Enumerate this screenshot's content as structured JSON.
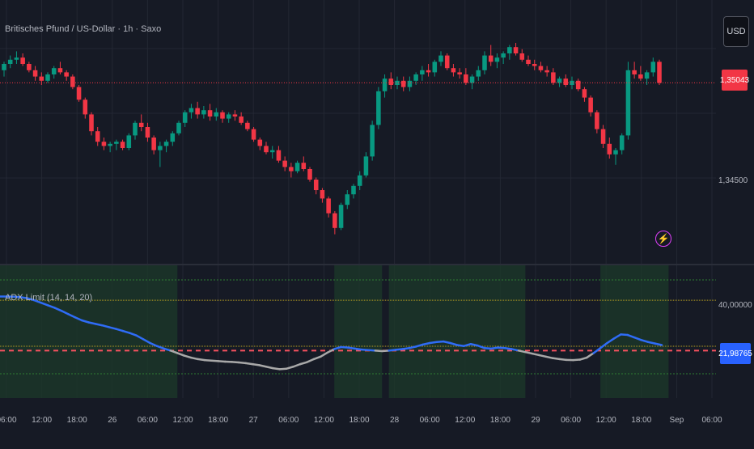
{
  "header": {
    "title": "Britisches Pfund / US-Dollar · 1h · Saxo",
    "currency": "USD"
  },
  "price_axis": {
    "current_price_label": "1,35043",
    "tick_label": "1,34500"
  },
  "indicator": {
    "title": "ADX Limit (14, 14, 20)",
    "level_label": "40,00000",
    "current_value_label": "21,98765"
  },
  "icons": {
    "flash": "lightning-icon"
  },
  "colors": {
    "background": "#161a25",
    "up_candle": "#089981",
    "down_candle": "#f23645",
    "adx_line_above": "#2f6cf6",
    "adx_line_below": "#a8a8a8",
    "highlight_zone": "#1c3a2a",
    "level_line": "#b8a020",
    "threshold_line": "#f7525f"
  },
  "chart_data": [
    {
      "type": "candlestick",
      "title": "Britisches Pfund / US-Dollar · 1h · Saxo",
      "y_label_ticks": [
        "1,34500"
      ],
      "last_price": "1,35043",
      "x_tick_labels": [
        "06:00",
        "12:00",
        "18:00",
        "26",
        "06:00",
        "12:00",
        "18:00",
        "27",
        "06:00",
        "12:00",
        "18:00",
        "28",
        "06:00",
        "12:00",
        "18:00",
        "29",
        "06:00",
        "12:00",
        "18:00",
        "Sep",
        "06:00"
      ],
      "candles": [
        [
          1.351,
          1.3514,
          1.3507,
          1.3513
        ],
        [
          1.3513,
          1.3517,
          1.3511,
          1.3515
        ],
        [
          1.3515,
          1.3519,
          1.3513,
          1.3516
        ],
        [
          1.3516,
          1.3518,
          1.3512,
          1.3513
        ],
        [
          1.3513,
          1.3514,
          1.3509,
          1.351
        ],
        [
          1.351,
          1.3512,
          1.3505,
          1.3507
        ],
        [
          1.3507,
          1.3509,
          1.3503,
          1.3505
        ],
        [
          1.3505,
          1.3509,
          1.3504,
          1.3508
        ],
        [
          1.3508,
          1.3512,
          1.3506,
          1.3511
        ],
        [
          1.3511,
          1.3514,
          1.3508,
          1.3509
        ],
        [
          1.3509,
          1.351,
          1.3505,
          1.3507
        ],
        [
          1.3507,
          1.3508,
          1.3501,
          1.3502
        ],
        [
          1.3502,
          1.3503,
          1.3495,
          1.3496
        ],
        [
          1.3496,
          1.3497,
          1.3487,
          1.3489
        ],
        [
          1.3489,
          1.349,
          1.3479,
          1.3481
        ],
        [
          1.3481,
          1.3483,
          1.3474,
          1.3476
        ],
        [
          1.3476,
          1.3478,
          1.3472,
          1.3474
        ],
        [
          1.3474,
          1.3476,
          1.3471,
          1.3475
        ],
        [
          1.3475,
          1.3477,
          1.3472,
          1.3476
        ],
        [
          1.3476,
          1.3477,
          1.3472,
          1.3473
        ],
        [
          1.3473,
          1.348,
          1.3472,
          1.3479
        ],
        [
          1.3479,
          1.3486,
          1.3477,
          1.3485
        ],
        [
          1.3485,
          1.3489,
          1.3481,
          1.3483
        ],
        [
          1.3483,
          1.3485,
          1.3476,
          1.3478
        ],
        [
          1.3478,
          1.3479,
          1.347,
          1.3472
        ],
        [
          1.3472,
          1.3476,
          1.3464,
          1.3474
        ],
        [
          1.3474,
          1.3477,
          1.3471,
          1.3476
        ],
        [
          1.3476,
          1.3481,
          1.3474,
          1.348
        ],
        [
          1.348,
          1.3486,
          1.3479,
          1.3485
        ],
        [
          1.3485,
          1.3491,
          1.3483,
          1.349
        ],
        [
          1.349,
          1.3494,
          1.3487,
          1.3492
        ],
        [
          1.3492,
          1.3495,
          1.3487,
          1.3489
        ],
        [
          1.3489,
          1.3493,
          1.3487,
          1.3491
        ],
        [
          1.3491,
          1.3494,
          1.3486,
          1.3488
        ],
        [
          1.3488,
          1.3492,
          1.3486,
          1.349
        ],
        [
          1.349,
          1.3491,
          1.3485,
          1.3487
        ],
        [
          1.3487,
          1.349,
          1.3485,
          1.3489
        ],
        [
          1.3489,
          1.3491,
          1.3486,
          1.3488
        ],
        [
          1.3488,
          1.349,
          1.3484,
          1.3485
        ],
        [
          1.3485,
          1.3486,
          1.3481,
          1.3482
        ],
        [
          1.3482,
          1.3483,
          1.3476,
          1.3477
        ],
        [
          1.3477,
          1.3478,
          1.3472,
          1.3474
        ],
        [
          1.3474,
          1.3476,
          1.347,
          1.3471
        ],
        [
          1.3471,
          1.3474,
          1.3468,
          1.3472
        ],
        [
          1.3472,
          1.3474,
          1.3466,
          1.3467
        ],
        [
          1.3467,
          1.3469,
          1.3462,
          1.3464
        ],
        [
          1.3464,
          1.3466,
          1.3459,
          1.3462
        ],
        [
          1.3462,
          1.3467,
          1.3461,
          1.3466
        ],
        [
          1.3466,
          1.3469,
          1.3462,
          1.3463
        ],
        [
          1.3463,
          1.3464,
          1.3457,
          1.3458
        ],
        [
          1.3458,
          1.3459,
          1.3451,
          1.3453
        ],
        [
          1.3453,
          1.3454,
          1.3447,
          1.3449
        ],
        [
          1.3449,
          1.345,
          1.344,
          1.3442
        ],
        [
          1.3442,
          1.3443,
          1.3432,
          1.3435
        ],
        [
          1.3435,
          1.3447,
          1.3434,
          1.3446
        ],
        [
          1.3446,
          1.3453,
          1.3444,
          1.3451
        ],
        [
          1.3451,
          1.3456,
          1.3449,
          1.3455
        ],
        [
          1.3455,
          1.3462,
          1.3453,
          1.346
        ],
        [
          1.346,
          1.3471,
          1.3459,
          1.3469
        ],
        [
          1.3469,
          1.3486,
          1.3467,
          1.3484
        ],
        [
          1.3484,
          1.3502,
          1.3482,
          1.35
        ],
        [
          1.35,
          1.3508,
          1.3497,
          1.3506
        ],
        [
          1.3506,
          1.3509,
          1.3501,
          1.3503
        ],
        [
          1.3503,
          1.3507,
          1.3501,
          1.3505
        ],
        [
          1.3505,
          1.3507,
          1.35,
          1.3502
        ],
        [
          1.3502,
          1.3507,
          1.35,
          1.3505
        ],
        [
          1.3505,
          1.3509,
          1.3503,
          1.3508
        ],
        [
          1.3508,
          1.3512,
          1.3505,
          1.351
        ],
        [
          1.351,
          1.3513,
          1.3507,
          1.3509
        ],
        [
          1.3509,
          1.3515,
          1.3507,
          1.3514
        ],
        [
          1.3514,
          1.3519,
          1.3512,
          1.3517
        ],
        [
          1.3517,
          1.3518,
          1.351,
          1.3511
        ],
        [
          1.3511,
          1.3513,
          1.3507,
          1.3509
        ],
        [
          1.3509,
          1.3511,
          1.3506,
          1.3508
        ],
        [
          1.3508,
          1.3511,
          1.3503,
          1.3504
        ],
        [
          1.3504,
          1.3508,
          1.3501,
          1.3507
        ],
        [
          1.3507,
          1.3512,
          1.3505,
          1.351
        ],
        [
          1.351,
          1.3519,
          1.3508,
          1.3517
        ],
        [
          1.3517,
          1.3522,
          1.3512,
          1.3514
        ],
        [
          1.3514,
          1.3518,
          1.3511,
          1.3516
        ],
        [
          1.3516,
          1.3519,
          1.3513,
          1.3518
        ],
        [
          1.3518,
          1.3522,
          1.3515,
          1.3521
        ],
        [
          1.3521,
          1.3523,
          1.3517,
          1.3518
        ],
        [
          1.3518,
          1.352,
          1.3514,
          1.3515
        ],
        [
          1.3515,
          1.3517,
          1.3512,
          1.3513
        ],
        [
          1.3513,
          1.3515,
          1.351,
          1.3512
        ],
        [
          1.3512,
          1.3514,
          1.3509,
          1.351
        ],
        [
          1.351,
          1.3512,
          1.3507,
          1.3509
        ],
        [
          1.3509,
          1.3511,
          1.3503,
          1.3504
        ],
        [
          1.3504,
          1.3507,
          1.3502,
          1.3506
        ],
        [
          1.3506,
          1.3508,
          1.3502,
          1.3503
        ],
        [
          1.3503,
          1.3507,
          1.3501,
          1.3505
        ],
        [
          1.3505,
          1.3506,
          1.35,
          1.3501
        ],
        [
          1.3501,
          1.3502,
          1.3495,
          1.3497
        ],
        [
          1.3497,
          1.3498,
          1.3488,
          1.349
        ],
        [
          1.349,
          1.3491,
          1.348,
          1.3482
        ],
        [
          1.3482,
          1.3484,
          1.3473,
          1.3475
        ],
        [
          1.3475,
          1.3478,
          1.3468,
          1.347
        ],
        [
          1.347,
          1.3473,
          1.3465,
          1.3472
        ],
        [
          1.3472,
          1.348,
          1.347,
          1.3479
        ],
        [
          1.3479,
          1.3514,
          1.3477,
          1.351
        ],
        [
          1.351,
          1.3514,
          1.3506,
          1.3508
        ],
        [
          1.3508,
          1.3512,
          1.3505,
          1.3506
        ],
        [
          1.3506,
          1.351,
          1.3503,
          1.3509
        ],
        [
          1.3509,
          1.3516,
          1.3507,
          1.3514
        ],
        [
          1.3514,
          1.3515,
          1.3503,
          1.3504
        ]
      ]
    },
    {
      "type": "line",
      "title": "ADX Limit (14, 14, 20)",
      "threshold": 20,
      "y_label_ticks": [
        "40,00000"
      ],
      "current_value_label": "21,98765",
      "values": [
        41.5,
        41.5,
        41.4,
        41.2,
        40.8,
        40.0,
        39.0,
        38.0,
        37.0,
        35.8,
        34.5,
        33.2,
        32.0,
        31.2,
        30.6,
        30.0,
        29.3,
        28.6,
        27.8,
        27.0,
        26.0,
        24.5,
        23.0,
        21.8,
        20.8,
        20.0,
        19.0,
        18.0,
        17.2,
        16.6,
        16.2,
        16.0,
        15.8,
        15.6,
        15.5,
        15.3,
        15.0,
        14.6,
        14.2,
        13.6,
        13.0,
        12.6,
        12.8,
        13.6,
        14.6,
        15.4,
        16.6,
        17.6,
        19.2,
        20.6,
        21.4,
        21.2,
        20.8,
        20.4,
        20.2,
        20.0,
        19.8,
        20.0,
        20.3,
        20.6,
        21.0,
        21.6,
        22.4,
        23.0,
        23.4,
        23.6,
        23.0,
        22.2,
        21.8,
        22.6,
        22.0,
        21.0,
        20.8,
        21.2,
        21.0,
        20.6,
        20.0,
        19.4,
        18.8,
        18.2,
        17.6,
        17.0,
        16.6,
        16.3,
        16.2,
        16.4,
        17.2,
        19.0,
        21.0,
        23.0,
        24.8,
        26.4,
        26.2,
        25.2,
        24.2,
        23.4,
        22.8,
        22.2
      ]
    }
  ]
}
